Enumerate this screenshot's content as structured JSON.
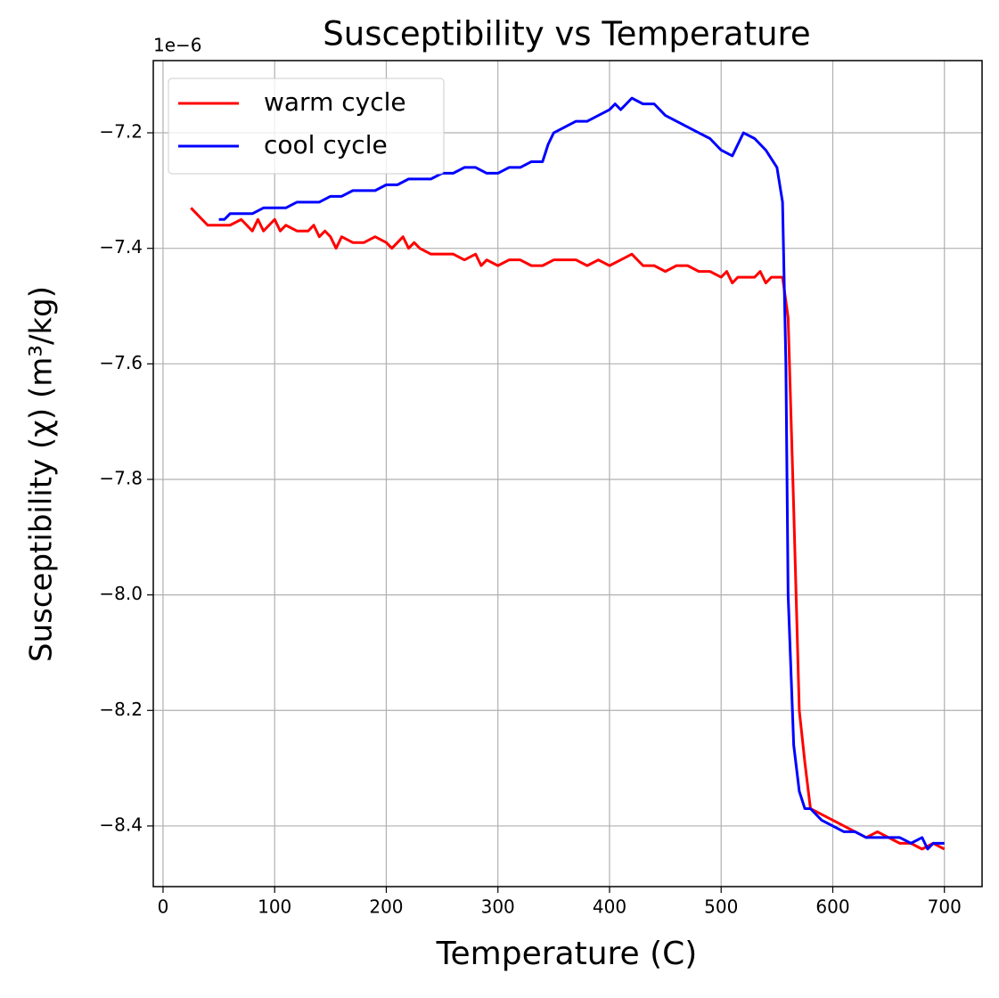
{
  "chart_data": {
    "type": "line",
    "title": "Susceptibility vs Temperature",
    "x_label": "Temperature (C)",
    "y_label": "Susceptibility (χ) (m³/kg)",
    "y_offset_label": "1e−6",
    "xlim": [
      -8.75,
      733.75
    ],
    "ylim": [
      -8.505,
      -7.075
    ],
    "xticks": [
      0,
      100,
      200,
      300,
      400,
      500,
      600,
      700
    ],
    "yticks": [
      {
        "value": -8.4,
        "label": "−8.4"
      },
      {
        "value": -8.2,
        "label": "−8.2"
      },
      {
        "value": -8.0,
        "label": "−8.0"
      },
      {
        "value": -7.8,
        "label": "−7.8"
      },
      {
        "value": -7.6,
        "label": "−7.6"
      },
      {
        "value": -7.4,
        "label": "−7.4"
      },
      {
        "value": -7.2,
        "label": "−7.2"
      }
    ],
    "grid": true,
    "legend": "upper left",
    "series": [
      {
        "name": "warm cycle",
        "color": "#ff0000",
        "x": [
          25,
          30,
          40,
          50,
          60,
          70,
          75,
          80,
          85,
          90,
          95,
          100,
          105,
          110,
          120,
          130,
          135,
          140,
          145,
          150,
          155,
          160,
          170,
          180,
          190,
          200,
          205,
          210,
          215,
          220,
          225,
          230,
          240,
          250,
          260,
          270,
          280,
          285,
          290,
          300,
          310,
          320,
          330,
          340,
          350,
          360,
          370,
          380,
          390,
          400,
          410,
          420,
          430,
          440,
          450,
          460,
          470,
          480,
          490,
          500,
          505,
          510,
          515,
          520,
          530,
          535,
          540,
          545,
          550,
          555,
          560,
          565,
          570,
          575,
          580,
          590,
          600,
          610,
          620,
          630,
          640,
          650,
          660,
          670,
          680,
          690,
          700
        ],
        "values": [
          -7.33,
          -7.34,
          -7.36,
          -7.36,
          -7.36,
          -7.35,
          -7.36,
          -7.37,
          -7.35,
          -7.37,
          -7.36,
          -7.35,
          -7.37,
          -7.36,
          -7.37,
          -7.37,
          -7.36,
          -7.38,
          -7.37,
          -7.38,
          -7.4,
          -7.38,
          -7.39,
          -7.39,
          -7.38,
          -7.39,
          -7.4,
          -7.39,
          -7.38,
          -7.4,
          -7.39,
          -7.4,
          -7.41,
          -7.41,
          -7.41,
          -7.42,
          -7.41,
          -7.43,
          -7.42,
          -7.43,
          -7.42,
          -7.42,
          -7.43,
          -7.43,
          -7.42,
          -7.42,
          -7.42,
          -7.43,
          -7.42,
          -7.43,
          -7.42,
          -7.41,
          -7.43,
          -7.43,
          -7.44,
          -7.43,
          -7.43,
          -7.44,
          -7.44,
          -7.45,
          -7.44,
          -7.46,
          -7.45,
          -7.45,
          -7.45,
          -7.44,
          -7.46,
          -7.45,
          -7.45,
          -7.45,
          -7.52,
          -7.85,
          -8.2,
          -8.29,
          -8.37,
          -8.38,
          -8.39,
          -8.4,
          -8.41,
          -8.42,
          -8.41,
          -8.42,
          -8.43,
          -8.43,
          -8.44,
          -8.43,
          -8.44
        ]
      },
      {
        "name": "cool cycle",
        "color": "#0000ff",
        "x": [
          50,
          55,
          60,
          70,
          80,
          90,
          100,
          110,
          120,
          130,
          140,
          150,
          160,
          170,
          180,
          190,
          200,
          210,
          220,
          230,
          240,
          250,
          260,
          270,
          280,
          290,
          300,
          310,
          320,
          330,
          340,
          345,
          350,
          360,
          370,
          380,
          390,
          400,
          405,
          410,
          415,
          420,
          430,
          440,
          450,
          460,
          470,
          480,
          490,
          500,
          510,
          515,
          520,
          530,
          540,
          550,
          555,
          558,
          560,
          565,
          570,
          575,
          580,
          590,
          600,
          610,
          620,
          630,
          640,
          650,
          660,
          670,
          680,
          685,
          690,
          700
        ],
        "values": [
          -7.35,
          -7.35,
          -7.34,
          -7.34,
          -7.34,
          -7.33,
          -7.33,
          -7.33,
          -7.32,
          -7.32,
          -7.32,
          -7.31,
          -7.31,
          -7.3,
          -7.3,
          -7.3,
          -7.29,
          -7.29,
          -7.28,
          -7.28,
          -7.28,
          -7.27,
          -7.27,
          -7.26,
          -7.26,
          -7.27,
          -7.27,
          -7.26,
          -7.26,
          -7.25,
          -7.25,
          -7.22,
          -7.2,
          -7.19,
          -7.18,
          -7.18,
          -7.17,
          -7.16,
          -7.15,
          -7.16,
          -7.15,
          -7.14,
          -7.15,
          -7.15,
          -7.17,
          -7.18,
          -7.19,
          -7.2,
          -7.21,
          -7.23,
          -7.24,
          -7.22,
          -7.2,
          -7.21,
          -7.23,
          -7.26,
          -7.32,
          -7.6,
          -8.0,
          -8.26,
          -8.34,
          -8.37,
          -8.37,
          -8.39,
          -8.4,
          -8.41,
          -8.41,
          -8.42,
          -8.42,
          -8.42,
          -8.42,
          -8.43,
          -8.42,
          -8.44,
          -8.43,
          -8.43
        ]
      }
    ]
  }
}
